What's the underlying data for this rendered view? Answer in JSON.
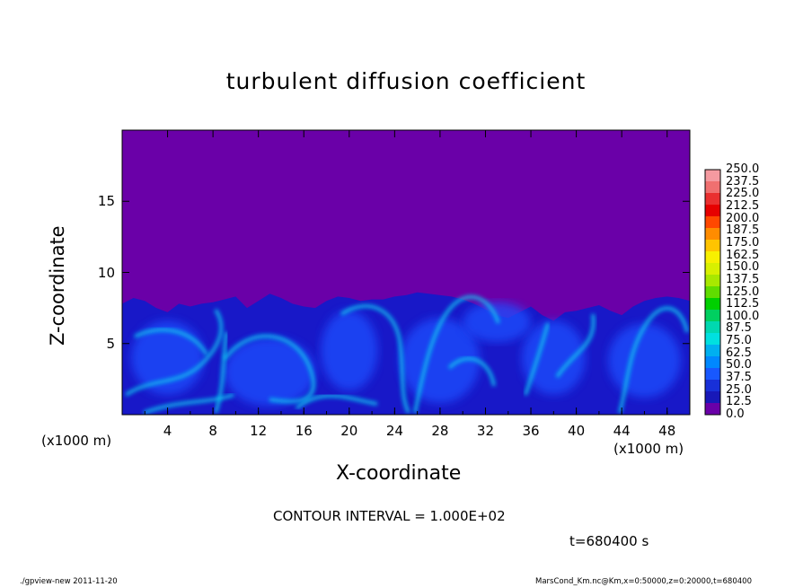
{
  "chart_data": {
    "type": "heatmap",
    "title": "turbulent diffusion coefficient",
    "xlabel": "X-coordinate",
    "ylabel": "Z-coordinate",
    "x_unit_left": "(x1000 m)",
    "x_unit_right": "(x1000 m)",
    "xlim": [
      0,
      50
    ],
    "ylim": [
      0,
      20
    ],
    "x_ticks": [
      "4",
      "8",
      "12",
      "16",
      "20",
      "24",
      "28",
      "32",
      "36",
      "40",
      "44",
      "48"
    ],
    "y_ticks": [
      "5",
      "10",
      "15"
    ],
    "colorbar": {
      "levels": [
        "250.0",
        "237.5",
        "225.0",
        "212.5",
        "200.0",
        "187.5",
        "175.0",
        "162.5",
        "150.0",
        "137.5",
        "125.0",
        "112.5",
        "100.0",
        "87.5",
        "75.0",
        "62.5",
        "50.0",
        "37.5",
        "25.0",
        "12.5",
        "0.0"
      ],
      "colors": [
        "#f59aa0",
        "#f07070",
        "#ea3030",
        "#e60000",
        "#ff4800",
        "#ff8c00",
        "#ffc400",
        "#f8f000",
        "#d8f000",
        "#a8e800",
        "#60dc00",
        "#00d000",
        "#00d060",
        "#00d8b0",
        "#00e0e0",
        "#00b0f0",
        "#0088ff",
        "#1858ff",
        "#1830d8",
        "#1818b8",
        "#6a00a8"
      ]
    },
    "boundary_layer_top_z": [
      7.8,
      8.2,
      8.0,
      7.5,
      7.2,
      7.8,
      7.6,
      7.8,
      7.9,
      8.1,
      8.3,
      7.5,
      8.0,
      8.5,
      8.2,
      7.8,
      7.6,
      7.5,
      8.0,
      8.3,
      8.2,
      8.0,
      8.1,
      8.1,
      8.3,
      8.4,
      8.6,
      8.5,
      8.4,
      8.3,
      8.1,
      7.8,
      7.4,
      7.0,
      6.8,
      7.2,
      7.6,
      7.0,
      6.6,
      7.2,
      7.3,
      7.5,
      7.7,
      7.3,
      7.0,
      7.6,
      8.0,
      8.2,
      8.3,
      8.2,
      8.0
    ]
  },
  "annotations": {
    "contour_interval": "CONTOUR INTERVAL = 1.000E+02",
    "time": "t=680400 s"
  },
  "footer": {
    "left": "./gpview-new  2011-11-20",
    "right": "MarsCond_Km.nc@Km,x=0:50000,z=0:20000,t=680400"
  },
  "colors": {
    "background_field": "#6a00a8",
    "eddy_dark": "#1818c8",
    "eddy_mid": "#1f50ff",
    "eddy_bright": "#10c8f0"
  }
}
